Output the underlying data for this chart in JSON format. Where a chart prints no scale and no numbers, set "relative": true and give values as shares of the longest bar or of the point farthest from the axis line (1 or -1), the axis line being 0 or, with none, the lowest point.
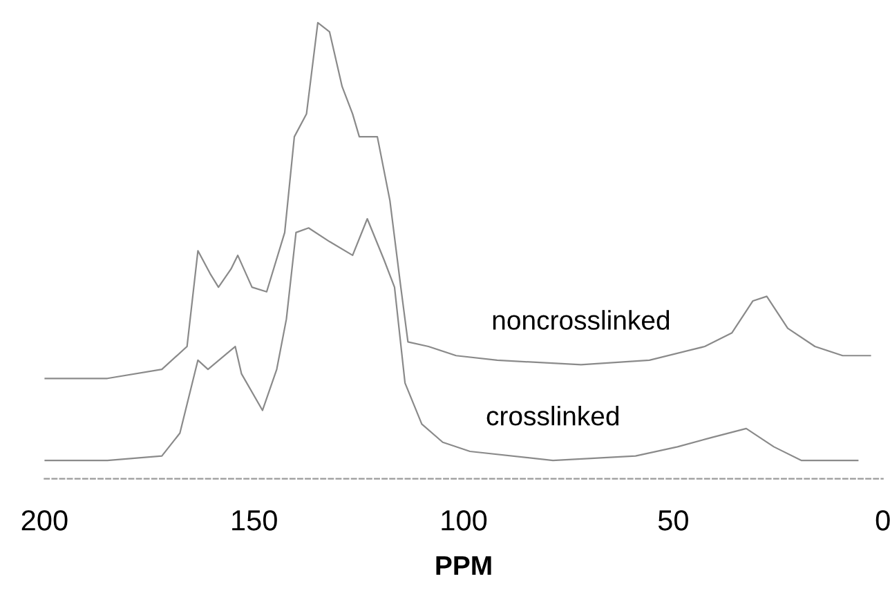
{
  "chart_data": {
    "type": "line",
    "relative": true,
    "xlabel": "PPM",
    "xlim": [
      200,
      0
    ],
    "xticks": [
      200,
      150,
      100,
      50,
      0
    ],
    "grid": false,
    "legend": false,
    "marker": "none",
    "line_style": "solid",
    "tick_labels": "x",
    "series": [
      {
        "name": "noncrosslinked",
        "color": "#8a8a8a",
        "x": [
          200,
          185,
          172,
          166,
          163.4,
          160.5,
          158.5,
          155.5,
          153.9,
          150.5,
          147,
          142.7,
          140.4,
          137.5,
          134.8,
          132,
          129,
          126.5,
          124.9,
          120.6,
          117.6,
          115,
          113.3,
          108.4,
          101.8,
          92,
          72,
          55.7,
          42.5,
          36,
          31,
          27.7,
          22.7,
          16.2,
          9.6,
          3
        ],
        "values": [
          0.22,
          0.22,
          0.24,
          0.29,
          0.5,
          0.45,
          0.42,
          0.46,
          0.49,
          0.42,
          0.41,
          0.54,
          0.75,
          0.8,
          1,
          0.98,
          0.86,
          0.8,
          0.75,
          0.75,
          0.61,
          0.42,
          0.3,
          0.29,
          0.27,
          0.26,
          0.25,
          0.26,
          0.29,
          0.32,
          0.39,
          0.4,
          0.33,
          0.29,
          0.27,
          0.27
        ]
      },
      {
        "name": "crosslinked",
        "color": "#8a8a8a",
        "x": [
          200,
          185,
          172,
          167.7,
          163.4,
          161,
          154.5,
          153,
          148,
          144.6,
          142.3,
          140,
          137,
          132,
          126.5,
          123,
          119,
          116.5,
          114,
          110,
          105,
          98.5,
          78.7,
          59,
          49,
          41,
          32.6,
          26,
          19.4,
          6
        ],
        "values": [
          0.04,
          0.04,
          0.05,
          0.1,
          0.26,
          0.24,
          0.29,
          0.23,
          0.15,
          0.24,
          0.35,
          0.54,
          0.55,
          0.52,
          0.49,
          0.57,
          0.48,
          0.42,
          0.21,
          0.12,
          0.08,
          0.06,
          0.04,
          0.05,
          0.07,
          0.09,
          0.11,
          0.07,
          0.04,
          0.04
        ]
      }
    ]
  }
}
